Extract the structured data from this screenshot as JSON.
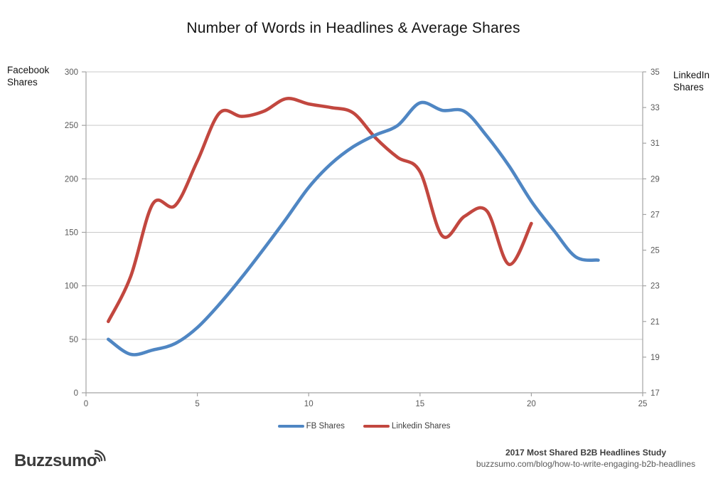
{
  "title": "Number of Words in Headlines & Average Shares",
  "left_axis_title": {
    "line1": "Facebook",
    "line2": "Shares"
  },
  "right_axis_title": {
    "line1": "LinkedIn",
    "line2": "Shares"
  },
  "legend": [
    {
      "label": "FB Shares",
      "color": "#4f86c3"
    },
    {
      "label": "Linkedin Shares",
      "color": "#c2473f"
    }
  ],
  "footer": {
    "study": "2017 Most Shared B2B Headlines Study",
    "url": "buzzsumo.com/blog/how-to-write-engaging-b2b-headlines"
  },
  "logo": {
    "text": "Buzzsumo",
    "icon": "signal-arcs-icon",
    "color": "#3b3b3b"
  },
  "colors": {
    "fb_line": "#4f86c3",
    "linkedin_line": "#c2473f",
    "gridline": "#c9c9c9",
    "axis_line": "#a3a3a3",
    "tick_text": "#595959",
    "title_text": "#141414"
  },
  "chart_data": {
    "type": "line",
    "title": "Number of Words in Headlines & Average Shares",
    "xlabel": "",
    "grid": "horizontal-only",
    "legend_position": "bottom-center",
    "x_axis": {
      "min": 0,
      "max": 25,
      "tick_step": 5,
      "ticks": [
        0,
        5,
        10,
        15,
        20,
        25
      ]
    },
    "left_axis": {
      "label": "Facebook Shares",
      "min": 0,
      "max": 300,
      "tick_step": 50,
      "ticks": [
        0,
        50,
        100,
        150,
        200,
        250,
        300
      ]
    },
    "right_axis": {
      "label": "LinkedIn Shares",
      "min": 17,
      "max": 35,
      "tick_step": 2,
      "ticks": [
        17,
        19,
        21,
        23,
        25,
        27,
        29,
        31,
        33,
        35
      ]
    },
    "series": [
      {
        "name": "Linkedin Shares",
        "axis": "right",
        "color": "#c2473f",
        "x": [
          1,
          2,
          3,
          4,
          5,
          6,
          7,
          8,
          9,
          10,
          11,
          12,
          13,
          14,
          15,
          16,
          17,
          18,
          19,
          20
        ],
        "values": [
          21.0,
          23.5,
          27.6,
          27.5,
          30.0,
          32.7,
          32.5,
          32.8,
          33.5,
          33.2,
          33.0,
          32.7,
          31.3,
          30.2,
          29.4,
          25.8,
          26.9,
          27.2,
          24.2,
          26.5
        ]
      },
      {
        "name": "FB Shares",
        "axis": "left",
        "color": "#4f86c3",
        "x": [
          1,
          2,
          3,
          4,
          5,
          6,
          7,
          8,
          9,
          10,
          11,
          12,
          13,
          14,
          15,
          16,
          17,
          18,
          19,
          20,
          21,
          22,
          23
        ],
        "values": [
          50,
          36,
          40,
          46,
          61,
          83,
          108,
          135,
          163,
          192,
          214,
          230,
          241,
          250,
          271,
          264,
          263,
          240,
          212,
          179,
          152,
          127,
          124
        ]
      }
    ]
  }
}
